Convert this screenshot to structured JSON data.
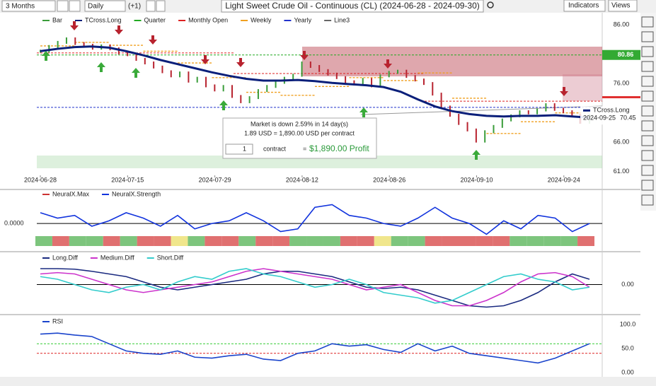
{
  "toolbar": {
    "period": "3 Months",
    "interval": "Daily",
    "offset": "(+1)",
    "title": "Light Sweet Crude Oil - Continuous (CL) (2024-06-28 - 2024-09-30)",
    "indicators": "Indicators",
    "views": "Views"
  },
  "main": {
    "legend": [
      "Bar",
      "TCross.Long",
      "Quarter",
      "Monthly Open",
      "Weekly",
      "Yearly",
      "Line3"
    ],
    "ylim": [
      58.7,
      87.8
    ],
    "yticks": [
      {
        "value": 86,
        "label": "86.00"
      },
      {
        "value": 76,
        "label": "76.00"
      },
      {
        "value": 66,
        "label": "66.00"
      },
      {
        "value": 61,
        "label": "61.00"
      }
    ],
    "dates": [
      "2024-06-28",
      "2024-07-15",
      "2024-07-29",
      "2024-08-12",
      "2024-08-26",
      "2024-09-10",
      "2024-09-24"
    ],
    "closes": [
      81.5,
      82.3,
      83.0,
      83.6,
      82.8,
      82.5,
      82.0,
      82.4,
      81.9,
      81.2,
      80.9,
      80.1,
      79.5,
      78.8,
      78.0,
      77.3,
      77.8,
      76.4,
      76.9,
      75.6,
      74.9,
      75.5,
      73.8,
      72.9,
      73.6,
      74.8,
      75.5,
      76.2,
      76.9,
      77.4,
      79.5,
      78.9,
      78.2,
      77.6,
      77.0,
      76.3,
      75.9,
      76.7,
      75.6,
      77.3,
      77.9,
      78.1,
      77.2,
      76.6,
      76.0,
      74.2,
      72.0,
      70.6,
      69.2,
      68.1,
      66.2,
      67.8,
      68.7,
      69.8,
      70.5,
      71.2,
      71.0,
      71.5,
      72.4,
      71.6,
      71.2,
      70.6,
      69.4,
      70.6
    ],
    "tcross": [
      81.5,
      81.9,
      82.2,
      82.3,
      82.1,
      81.5,
      80.8,
      80.0,
      79.3,
      78.6,
      77.9,
      77.3,
      76.8,
      76.5,
      76.5,
      76.6,
      76.4,
      76.1,
      75.9,
      75.7,
      75.4,
      74.6,
      73.3,
      72.1,
      71.3,
      70.8,
      70.5,
      70.4,
      70.5,
      70.5,
      70.6,
      70.4,
      70.2
    ],
    "weekly": [
      82.4,
      83.0,
      82.5,
      81.5,
      79.5,
      77.0,
      74.5,
      74.0,
      75.5,
      77.0,
      76.5,
      77.8,
      73.5,
      67.5,
      69.5,
      71.0
    ],
    "monthly_open": [
      81.2,
      77.7,
      73.0
    ],
    "yearly": 71.94,
    "quarter": {
      "value": 80.86,
      "label": "80.86"
    },
    "tcross_label": {
      "name": "TCross.Long",
      "date": "2024-09-25",
      "value": {
        "value": 70.45,
        "label": "70.45"
      }
    },
    "tooltip": {
      "line1": "Market is down 2.59% in 14 day(s)",
      "line2": "1.89 USD = 1,890.00 USD per contract",
      "qty": "1",
      "unit": "contract",
      "equals": "=",
      "profit": "$1,890.00 Profit"
    }
  },
  "neural": {
    "legend": [
      "NeuralX.Max",
      "NeuralX.Strength"
    ],
    "ylim": [
      -0.47,
      0.5
    ],
    "yticks": [
      {
        "value": 0,
        "label": "0.0000"
      }
    ],
    "strength": [
      0.2,
      0.1,
      0.15,
      -0.05,
      0.05,
      0.2,
      0.1,
      -0.05,
      0.15,
      -0.1,
      0.0,
      0.05,
      0.2,
      0.05,
      -0.15,
      -0.1,
      0.3,
      0.35,
      0.15,
      0.1,
      0.0,
      -0.05,
      0.1,
      0.3,
      0.1,
      0.0,
      -0.2,
      0.05,
      -0.1,
      0.15,
      0.1,
      -0.15,
      0.0
    ],
    "max_colors": [
      "#7dc57d",
      "#e07070",
      "#7dc57d",
      "#7dc57d",
      "#e07070",
      "#7dc57d",
      "#e07070",
      "#e07070",
      "#f0e68c",
      "#7dc57d",
      "#e07070",
      "#e07070",
      "#7dc57d",
      "#e07070",
      "#e07070",
      "#7dc57d",
      "#7dc57d",
      "#7dc57d",
      "#e07070",
      "#e07070",
      "#f0e68c",
      "#7dc57d",
      "#7dc57d",
      "#e07070",
      "#e07070",
      "#e07070",
      "#e07070",
      "#e07070",
      "#7dc57d",
      "#7dc57d",
      "#7dc57d",
      "#7dc57d",
      "#e07070"
    ]
  },
  "diff": {
    "legend": [
      "Long.Diff",
      "Medium.Diff",
      "Short.Diff"
    ],
    "ylim": [
      -1,
      1
    ],
    "yticks": [
      {
        "value": 0,
        "label": "0.00"
      }
    ],
    "series": [
      {
        "name": "Long.Diff",
        "color": "#1a2a80",
        "values": [
          0.6,
          0.6,
          0.58,
          0.5,
          0.4,
          0.3,
          0.1,
          -0.1,
          -0.2,
          -0.1,
          0.0,
          0.1,
          0.2,
          0.4,
          0.5,
          0.5,
          0.4,
          0.3,
          0.1,
          -0.1,
          -0.15,
          -0.1,
          -0.2,
          -0.4,
          -0.6,
          -0.8,
          -0.85,
          -0.8,
          -0.6,
          -0.3,
          0.1,
          0.4,
          0.2
        ]
      },
      {
        "name": "Medium.Diff",
        "color": "#cc33cc",
        "values": [
          0.4,
          0.45,
          0.4,
          0.2,
          0.0,
          -0.2,
          -0.3,
          -0.2,
          -0.1,
          0.0,
          0.1,
          0.3,
          0.5,
          0.6,
          0.5,
          0.4,
          0.3,
          0.2,
          0.0,
          -0.2,
          -0.1,
          0.0,
          -0.3,
          -0.6,
          -0.8,
          -0.8,
          -0.6,
          -0.3,
          0.1,
          0.4,
          0.45,
          0.3,
          -0.1
        ]
      },
      {
        "name": "Short.Diff",
        "color": "#33cccc",
        "values": [
          0.3,
          0.2,
          0.0,
          -0.2,
          -0.3,
          -0.1,
          0.0,
          -0.2,
          0.1,
          0.3,
          0.2,
          0.5,
          0.6,
          0.4,
          0.3,
          0.1,
          -0.1,
          0.0,
          0.2,
          0.0,
          -0.3,
          -0.4,
          -0.5,
          -0.7,
          -0.6,
          -0.3,
          0.0,
          0.3,
          0.4,
          0.2,
          0.1,
          -0.2,
          -0.1
        ]
      }
    ]
  },
  "rsi": {
    "legend": [
      "RSI"
    ],
    "ylim": [
      0,
      100
    ],
    "yticks": [
      {
        "value": 100,
        "label": "100.0"
      },
      {
        "value": 50,
        "label": "50.0"
      },
      {
        "value": 0,
        "label": "0.00"
      }
    ],
    "levels": [
      {
        "value": 60,
        "color": "#33cc33"
      },
      {
        "value": 40,
        "color": "#dd2222"
      }
    ],
    "color": "#1a44cc",
    "values": [
      80,
      82,
      78,
      75,
      60,
      45,
      40,
      38,
      45,
      32,
      30,
      35,
      38,
      28,
      25,
      40,
      45,
      60,
      55,
      58,
      48,
      42,
      60,
      45,
      55,
      40,
      35,
      30,
      25,
      20,
      30,
      45,
      60
    ]
  }
}
